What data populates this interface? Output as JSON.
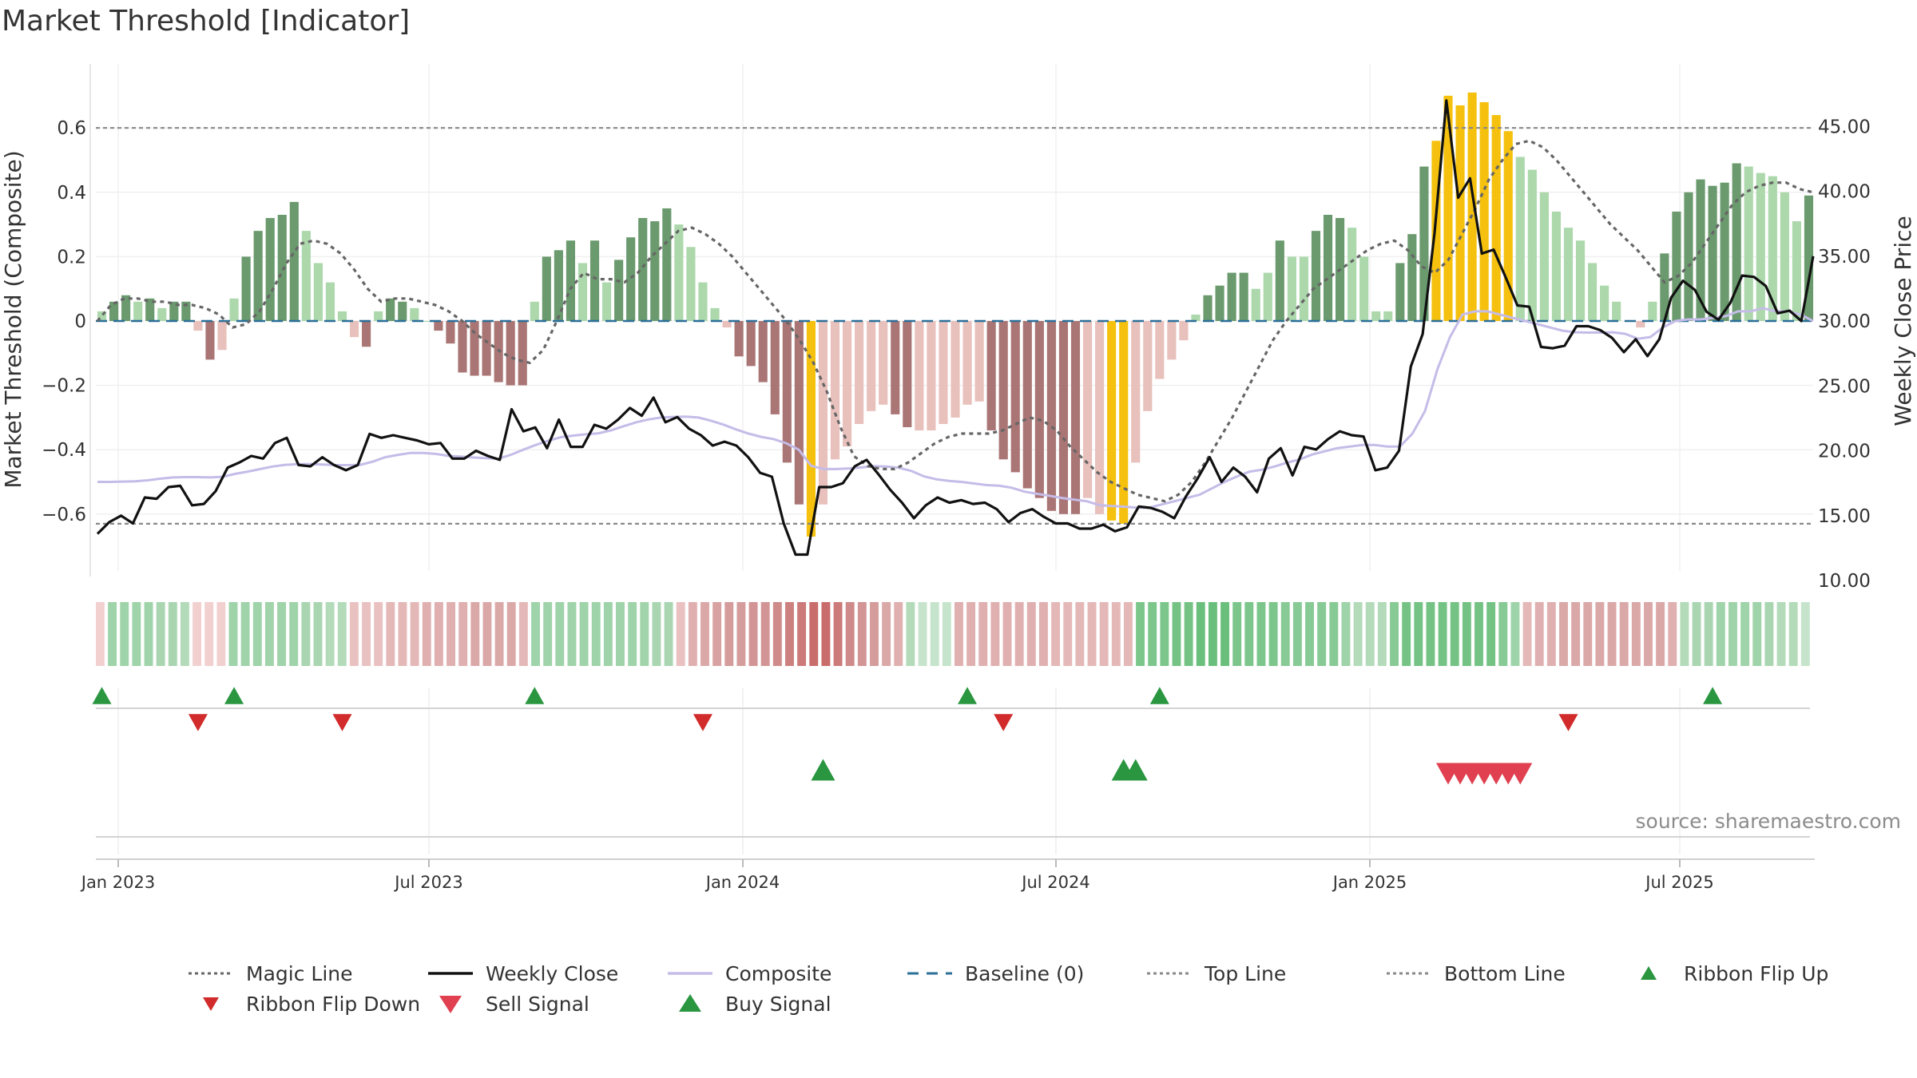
{
  "title": "Market Threshold [Indicator]",
  "source": "source: sharemaestro.com",
  "chart_data": {
    "type": "bar",
    "y_left_label": "Market Threshold (Composite)",
    "y_right_label": "Weekly Close Price",
    "y_left_ticks": [
      "0.6",
      "0.4",
      "0.2",
      "0",
      "−0.2",
      "−0.4",
      "−0.6"
    ],
    "y_right_ticks": [
      "45.00",
      "40.00",
      "35.00",
      "30.00",
      "25.00",
      "20.00",
      "15.00",
      "10.00"
    ],
    "ylim_left": [
      -0.78,
      0.78
    ],
    "ylim_right": [
      10,
      48
    ],
    "x_tick_labels": [
      "Jan 2023",
      "Jul 2023",
      "Jan 2024",
      "Jul 2024",
      "Jan 2025",
      "Jul 2025"
    ],
    "top_line": 0.6,
    "bottom_line": -0.63,
    "grid": true,
    "composite_bars": [
      {
        "v": 0.03,
        "c": "lg"
      },
      {
        "v": 0.06,
        "c": "dg"
      },
      {
        "v": 0.08,
        "c": "dg"
      },
      {
        "v": 0.06,
        "c": "lg"
      },
      {
        "v": 0.07,
        "c": "dg"
      },
      {
        "v": 0.04,
        "c": "lg"
      },
      {
        "v": 0.06,
        "c": "dg"
      },
      {
        "v": 0.06,
        "c": "dg"
      },
      {
        "v": -0.03,
        "c": "lr"
      },
      {
        "v": -0.12,
        "c": "dr"
      },
      {
        "v": -0.09,
        "c": "lr"
      },
      {
        "v": 0.07,
        "c": "lg"
      },
      {
        "v": 0.2,
        "c": "dg"
      },
      {
        "v": 0.28,
        "c": "dg"
      },
      {
        "v": 0.32,
        "c": "dg"
      },
      {
        "v": 0.33,
        "c": "dg"
      },
      {
        "v": 0.37,
        "c": "dg"
      },
      {
        "v": 0.28,
        "c": "lg"
      },
      {
        "v": 0.18,
        "c": "lg"
      },
      {
        "v": 0.12,
        "c": "lg"
      },
      {
        "v": 0.03,
        "c": "lg"
      },
      {
        "v": -0.05,
        "c": "lr"
      },
      {
        "v": -0.08,
        "c": "dr"
      },
      {
        "v": 0.03,
        "c": "lg"
      },
      {
        "v": 0.07,
        "c": "dg"
      },
      {
        "v": 0.06,
        "c": "dg"
      },
      {
        "v": 0.04,
        "c": "lg"
      },
      {
        "v": 0.0,
        "c": "lg"
      },
      {
        "v": -0.03,
        "c": "dr"
      },
      {
        "v": -0.07,
        "c": "dr"
      },
      {
        "v": -0.16,
        "c": "dr"
      },
      {
        "v": -0.17,
        "c": "dr"
      },
      {
        "v": -0.17,
        "c": "dr"
      },
      {
        "v": -0.19,
        "c": "dr"
      },
      {
        "v": -0.2,
        "c": "dr"
      },
      {
        "v": -0.2,
        "c": "dr"
      },
      {
        "v": 0.06,
        "c": "lg"
      },
      {
        "v": 0.2,
        "c": "dg"
      },
      {
        "v": 0.22,
        "c": "dg"
      },
      {
        "v": 0.25,
        "c": "dg"
      },
      {
        "v": 0.18,
        "c": "lg"
      },
      {
        "v": 0.25,
        "c": "dg"
      },
      {
        "v": 0.12,
        "c": "lg"
      },
      {
        "v": 0.19,
        "c": "dg"
      },
      {
        "v": 0.26,
        "c": "dg"
      },
      {
        "v": 0.32,
        "c": "dg"
      },
      {
        "v": 0.31,
        "c": "dg"
      },
      {
        "v": 0.35,
        "c": "dg"
      },
      {
        "v": 0.3,
        "c": "lg"
      },
      {
        "v": 0.23,
        "c": "lg"
      },
      {
        "v": 0.12,
        "c": "lg"
      },
      {
        "v": 0.04,
        "c": "lg"
      },
      {
        "v": -0.02,
        "c": "lr"
      },
      {
        "v": -0.11,
        "c": "dr"
      },
      {
        "v": -0.14,
        "c": "dr"
      },
      {
        "v": -0.19,
        "c": "dr"
      },
      {
        "v": -0.29,
        "c": "dr"
      },
      {
        "v": -0.44,
        "c": "dr"
      },
      {
        "v": -0.57,
        "c": "dr"
      },
      {
        "v": -0.67,
        "c": "y"
      },
      {
        "v": -0.57,
        "c": "lr"
      },
      {
        "v": -0.43,
        "c": "lr"
      },
      {
        "v": -0.39,
        "c": "lr"
      },
      {
        "v": -0.32,
        "c": "lr"
      },
      {
        "v": -0.28,
        "c": "lr"
      },
      {
        "v": -0.26,
        "c": "lr"
      },
      {
        "v": -0.29,
        "c": "dr"
      },
      {
        "v": -0.33,
        "c": "dr"
      },
      {
        "v": -0.34,
        "c": "lr"
      },
      {
        "v": -0.34,
        "c": "lr"
      },
      {
        "v": -0.32,
        "c": "lr"
      },
      {
        "v": -0.3,
        "c": "lr"
      },
      {
        "v": -0.26,
        "c": "lr"
      },
      {
        "v": -0.25,
        "c": "lr"
      },
      {
        "v": -0.34,
        "c": "dr"
      },
      {
        "v": -0.43,
        "c": "dr"
      },
      {
        "v": -0.47,
        "c": "dr"
      },
      {
        "v": -0.52,
        "c": "dr"
      },
      {
        "v": -0.55,
        "c": "dr"
      },
      {
        "v": -0.59,
        "c": "dr"
      },
      {
        "v": -0.6,
        "c": "dr"
      },
      {
        "v": -0.6,
        "c": "dr"
      },
      {
        "v": -0.55,
        "c": "lr"
      },
      {
        "v": -0.6,
        "c": "lr"
      },
      {
        "v": -0.62,
        "c": "y"
      },
      {
        "v": -0.63,
        "c": "y"
      },
      {
        "v": -0.44,
        "c": "lr"
      },
      {
        "v": -0.28,
        "c": "lr"
      },
      {
        "v": -0.18,
        "c": "lr"
      },
      {
        "v": -0.12,
        "c": "lr"
      },
      {
        "v": -0.06,
        "c": "lr"
      },
      {
        "v": 0.02,
        "c": "lg"
      },
      {
        "v": 0.08,
        "c": "dg"
      },
      {
        "v": 0.11,
        "c": "dg"
      },
      {
        "v": 0.15,
        "c": "dg"
      },
      {
        "v": 0.15,
        "c": "dg"
      },
      {
        "v": 0.1,
        "c": "lg"
      },
      {
        "v": 0.15,
        "c": "lg"
      },
      {
        "v": 0.25,
        "c": "dg"
      },
      {
        "v": 0.2,
        "c": "lg"
      },
      {
        "v": 0.2,
        "c": "lg"
      },
      {
        "v": 0.28,
        "c": "dg"
      },
      {
        "v": 0.33,
        "c": "dg"
      },
      {
        "v": 0.32,
        "c": "dg"
      },
      {
        "v": 0.29,
        "c": "lg"
      },
      {
        "v": 0.2,
        "c": "lg"
      },
      {
        "v": 0.03,
        "c": "lg"
      },
      {
        "v": 0.03,
        "c": "lg"
      },
      {
        "v": 0.18,
        "c": "dg"
      },
      {
        "v": 0.27,
        "c": "dg"
      },
      {
        "v": 0.48,
        "c": "dg"
      },
      {
        "v": 0.56,
        "c": "y"
      },
      {
        "v": 0.7,
        "c": "y"
      },
      {
        "v": 0.67,
        "c": "y"
      },
      {
        "v": 0.71,
        "c": "y"
      },
      {
        "v": 0.68,
        "c": "y"
      },
      {
        "v": 0.64,
        "c": "y"
      },
      {
        "v": 0.59,
        "c": "y"
      },
      {
        "v": 0.51,
        "c": "lg"
      },
      {
        "v": 0.47,
        "c": "lg"
      },
      {
        "v": 0.4,
        "c": "lg"
      },
      {
        "v": 0.34,
        "c": "lg"
      },
      {
        "v": 0.29,
        "c": "lg"
      },
      {
        "v": 0.25,
        "c": "lg"
      },
      {
        "v": 0.18,
        "c": "lg"
      },
      {
        "v": 0.11,
        "c": "lg"
      },
      {
        "v": 0.06,
        "c": "lg"
      },
      {
        "v": 0.0,
        "c": "lg"
      },
      {
        "v": -0.02,
        "c": "lr"
      },
      {
        "v": 0.06,
        "c": "lg"
      },
      {
        "v": 0.21,
        "c": "dg"
      },
      {
        "v": 0.34,
        "c": "dg"
      },
      {
        "v": 0.4,
        "c": "dg"
      },
      {
        "v": 0.44,
        "c": "dg"
      },
      {
        "v": 0.42,
        "c": "dg"
      },
      {
        "v": 0.43,
        "c": "dg"
      },
      {
        "v": 0.49,
        "c": "dg"
      },
      {
        "v": 0.48,
        "c": "lg"
      },
      {
        "v": 0.46,
        "c": "lg"
      },
      {
        "v": 0.45,
        "c": "lg"
      },
      {
        "v": 0.4,
        "c": "lg"
      },
      {
        "v": 0.31,
        "c": "lg"
      },
      {
        "v": 0.39,
        "c": "dg"
      }
    ],
    "weekly_close": [
      13.6,
      14.5,
      15,
      14.4,
      16.4,
      16.3,
      17.2,
      17.3,
      15.8,
      15.9,
      16.9,
      18.7,
      19.1,
      19.6,
      19.4,
      20.6,
      21.0,
      18.9,
      18.8,
      19.5,
      18.9,
      18.5,
      18.9,
      21.3,
      21.0,
      21.2,
      21.0,
      20.8,
      20.5,
      20.6,
      19.4,
      19.4,
      20.0,
      19.6,
      19.3,
      23.2,
      21.5,
      21.8,
      20.2,
      22.4,
      20.3,
      20.3,
      22.0,
      21.7,
      22.4,
      23.3,
      22.7,
      24.1,
      22.2,
      22.6,
      21.7,
      21.2,
      20.4,
      20.7,
      20.4,
      19.5,
      18.3,
      18.0,
      14.4,
      12.0,
      12.0,
      17.2,
      17.2,
      17.5,
      18.8,
      19.3,
      18.2,
      17.0,
      16.0,
      14.8,
      15.8,
      16.4,
      16.0,
      16.2,
      15.9,
      16.0,
      15.5,
      14.5,
      15.2,
      15.5,
      14.9,
      14.4,
      14.4,
      14.0,
      14.0,
      14.3,
      13.8,
      14.1,
      15.7,
      15.6,
      15.3,
      14.8,
      16.5,
      17.9,
      19.5,
      17.6,
      18.7,
      18.0,
      16.8,
      19.4,
      20.2,
      18.1,
      20.3,
      20.1,
      20.9,
      21.5,
      21.2,
      21.1,
      18.5,
      18.7,
      20.0,
      26.5,
      29.0,
      36.8,
      47.0,
      39.5,
      41.0,
      35.2,
      35.5,
      33.4,
      31.2,
      31.1,
      28.0,
      27.9,
      28.1,
      29.6,
      29.6,
      29.3,
      28.7,
      27.6,
      28.6,
      27.3,
      28.6,
      31.8,
      33.1,
      32.4,
      30.7,
      30.1,
      31.4,
      33.5,
      33.4,
      32.7,
      30.6,
      30.8,
      30.0,
      35.0
    ],
    "composite_line": [
      -0.5,
      -0.5,
      -0.499,
      -0.498,
      -0.495,
      -0.49,
      -0.486,
      -0.485,
      -0.485,
      -0.486,
      -0.484,
      -0.475,
      -0.468,
      -0.46,
      -0.452,
      -0.447,
      -0.445,
      -0.445,
      -0.446,
      -0.448,
      -0.448,
      -0.447,
      -0.437,
      -0.423,
      -0.416,
      -0.41,
      -0.41,
      -0.413,
      -0.419,
      -0.421,
      -0.424,
      -0.426,
      -0.428,
      -0.416,
      -0.4,
      -0.385,
      -0.372,
      -0.361,
      -0.356,
      -0.352,
      -0.349,
      -0.34,
      -0.327,
      -0.315,
      -0.306,
      -0.3,
      -0.298,
      -0.297,
      -0.3,
      -0.31,
      -0.322,
      -0.337,
      -0.35,
      -0.36,
      -0.367,
      -0.38,
      -0.4,
      -0.45,
      -0.46,
      -0.46,
      -0.458,
      -0.455,
      -0.451,
      -0.452,
      -0.456,
      -0.466,
      -0.483,
      -0.492,
      -0.497,
      -0.5,
      -0.505,
      -0.51,
      -0.512,
      -0.518,
      -0.53,
      -0.537,
      -0.543,
      -0.55,
      -0.555,
      -0.56,
      -0.572,
      -0.575,
      -0.577,
      -0.58,
      -0.58,
      -0.57,
      -0.56,
      -0.55,
      -0.54,
      -0.52,
      -0.5,
      -0.483,
      -0.468,
      -0.462,
      -0.452,
      -0.44,
      -0.43,
      -0.415,
      -0.405,
      -0.395,
      -0.39,
      -0.385,
      -0.385,
      -0.39,
      -0.39,
      -0.35,
      -0.28,
      -0.15,
      -0.05,
      0.02,
      0.03,
      0.03,
      0.02,
      0.01,
      0.0,
      -0.01,
      -0.02,
      -0.03,
      -0.035,
      -0.036,
      -0.036,
      -0.035,
      -0.04,
      -0.055,
      -0.05,
      -0.02,
      0.0,
      0.005,
      0.005,
      0.01,
      0.015,
      0.03,
      0.03,
      0.04,
      0.03,
      0.03,
      0.02,
      0.0
    ],
    "magic_line": [
      0.0,
      0.05,
      0.07,
      0.07,
      0.06,
      0.06,
      0.05,
      0.05,
      0.04,
      0.02,
      -0.02,
      -0.01,
      0.03,
      0.1,
      0.18,
      0.24,
      0.25,
      0.24,
      0.21,
      0.16,
      0.1,
      0.06,
      0.07,
      0.07,
      0.06,
      0.05,
      0.03,
      0.0,
      -0.04,
      -0.07,
      -0.1,
      -0.12,
      -0.13,
      -0.09,
      0.0,
      0.1,
      0.15,
      0.13,
      0.13,
      0.12,
      0.15,
      0.2,
      0.24,
      0.28,
      0.29,
      0.27,
      0.24,
      0.2,
      0.15,
      0.1,
      0.05,
      0.0,
      -0.06,
      -0.13,
      -0.22,
      -0.33,
      -0.42,
      -0.45,
      -0.46,
      -0.46,
      -0.44,
      -0.41,
      -0.38,
      -0.36,
      -0.35,
      -0.35,
      -0.35,
      -0.34,
      -0.32,
      -0.3,
      -0.31,
      -0.34,
      -0.39,
      -0.43,
      -0.47,
      -0.5,
      -0.52,
      -0.54,
      -0.55,
      -0.56,
      -0.54,
      -0.5,
      -0.44,
      -0.37,
      -0.3,
      -0.22,
      -0.14,
      -0.06,
      0.0,
      0.05,
      0.1,
      0.13,
      0.16,
      0.19,
      0.22,
      0.24,
      0.25,
      0.22,
      0.17,
      0.15,
      0.19,
      0.27,
      0.35,
      0.44,
      0.5,
      0.55,
      0.56,
      0.54,
      0.5,
      0.45,
      0.4,
      0.35,
      0.3,
      0.26,
      0.22,
      0.17,
      0.12,
      0.14,
      0.18,
      0.24,
      0.3,
      0.36,
      0.4,
      0.42,
      0.43,
      0.43,
      0.41,
      0.4
    ],
    "ribbon": [
      "#f2d0d0",
      "#9fd3a9",
      "#9fd3a9",
      "#9fd3a9",
      "#9fd3a9",
      "#a9d6b1",
      "#a9d6b1",
      "#b3dbba",
      "#f2d0d0",
      "#f2d0d0",
      "#f2d0d0",
      "#9fd3a9",
      "#9fd3a9",
      "#9fd3a9",
      "#a1d4aa",
      "#9fd3a9",
      "#9fd3a9",
      "#a9d6b1",
      "#a9d6b1",
      "#b3dbba",
      "#b3dbba",
      "#eac1c1",
      "#eac1c1",
      "#eac1c1",
      "#e5b8b8",
      "#e5b8b8",
      "#e5b8b8",
      "#e0b0b0",
      "#e0b0b0",
      "#e0b0b0",
      "#e0b0b0",
      "#dba8a8",
      "#dba8a8",
      "#dba8a8",
      "#dba8a8",
      "#e5b8b8",
      "#9fd3a9",
      "#9fd3a9",
      "#9fd3a9",
      "#9fd3a9",
      "#9fd3a9",
      "#9fd3a9",
      "#9fd3a9",
      "#9fd3a9",
      "#9fd3a9",
      "#a1d4aa",
      "#a9d6b1",
      "#a9d6b1",
      "#eac1c1",
      "#e0b0b0",
      "#dba8a8",
      "#d9a2a2",
      "#d59c9c",
      "#d59c9c",
      "#d29494",
      "#d29494",
      "#cf8a8a",
      "#cc8080",
      "#cc7a7a",
      "#c96c6c",
      "#c96c6c",
      "#cc7a7a",
      "#cf8a8a",
      "#d29494",
      "#d59c9c",
      "#dba8a8",
      "#e0b0b0",
      "#b3dbba",
      "#c6e4cb",
      "#c6e4cb",
      "#c6e4cb",
      "#e0b0b0",
      "#e0b0b0",
      "#e0b0b0",
      "#e0b0b0",
      "#e0b0b0",
      "#e0b0b0",
      "#e0b0b0",
      "#e0b0b0",
      "#e5b8b8",
      "#e5b8b8",
      "#e5b8b8",
      "#e5b8b8",
      "#e5b8b8",
      "#e5b8b8",
      "#e5b8b8",
      "#7cc68b",
      "#7cc68b",
      "#7cc68b",
      "#74c385",
      "#74c385",
      "#6bbf7c",
      "#6bbf7c",
      "#6bbf7c",
      "#7cc68b",
      "#7cc68b",
      "#7cc68b",
      "#7cc68b",
      "#88ca95",
      "#88ca95",
      "#88ca95",
      "#88ca95",
      "#88ca95",
      "#9fd3a9",
      "#b3dbba",
      "#b3dbba",
      "#b3dbba",
      "#88ca95",
      "#74c385",
      "#74c385",
      "#74c385",
      "#74c385",
      "#74c385",
      "#74c385",
      "#74c385",
      "#74c385",
      "#88ca95",
      "#9fd3a9",
      "#e5b8b8",
      "#e0b0b0",
      "#e0b0b0",
      "#dba8a8",
      "#dba8a8",
      "#dba8a8",
      "#dba8a8",
      "#dba8a8",
      "#dba8a8",
      "#dba8a8",
      "#dba8a8",
      "#dba8a8",
      "#e0b0b0",
      "#b3dbba",
      "#a9d6b1",
      "#a9d6b1",
      "#9fd3a9",
      "#9fd3a9",
      "#9fd3a9",
      "#9fd3a9",
      "#a9d6b1",
      "#b3dbba",
      "#b3dbba",
      "#c6e4cb"
    ],
    "ribbon_flip_up": [
      0,
      11,
      36,
      72,
      88,
      134
    ],
    "ribbon_flip_down": [
      8,
      20,
      50,
      75,
      122
    ],
    "buy_signal": [
      60,
      85,
      86
    ],
    "sell_signal": [
      112,
      113,
      114,
      115,
      116,
      117,
      118
    ],
    "legend": [
      {
        "label": "Magic Line",
        "style": "dotted",
        "color": "#666666"
      },
      {
        "label": "Weekly Close",
        "style": "solid",
        "color": "#111111"
      },
      {
        "label": "Composite",
        "style": "solid",
        "color": "#c5bce8"
      },
      {
        "label": "Baseline (0)",
        "style": "dashed",
        "color": "#2b6f99"
      },
      {
        "label": "Top Line",
        "style": "dotted",
        "color": "#888888"
      },
      {
        "label": "Bottom Line",
        "style": "dotted",
        "color": "#888888"
      },
      {
        "label": "Ribbon Flip Up",
        "style": "tri-up",
        "color": "#2a9640"
      },
      {
        "label": "Ribbon Flip Down",
        "style": "tri-down",
        "color": "#d12b2b"
      },
      {
        "label": "Sell Signal",
        "style": "tri-down-big",
        "color": "#e0404f"
      },
      {
        "label": "Buy Signal",
        "style": "tri-up-big",
        "color": "#2a9640"
      }
    ],
    "colors": {
      "dg": "#6a9a6d",
      "lg": "#acd8ac",
      "dr": "#aa7575",
      "lr": "#e8c0bc",
      "y": "#f5c10e"
    }
  }
}
